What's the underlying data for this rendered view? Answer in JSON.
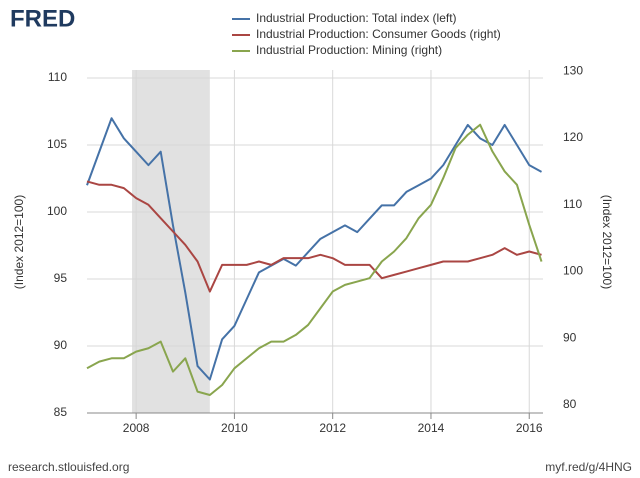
{
  "brand": "FRED",
  "footer_left": "research.stlouisfed.org",
  "footer_right": "myf.red/g/4HNG",
  "chart_data": {
    "type": "line",
    "y_label": "(Index 2012=100)",
    "y2_label": "(Index 2012=100)",
    "x": [
      2007.0,
      2007.25,
      2007.5,
      2007.75,
      2008.0,
      2008.25,
      2008.5,
      2008.75,
      2009.0,
      2009.25,
      2009.5,
      2009.75,
      2010.0,
      2010.25,
      2010.5,
      2010.75,
      2011.0,
      2011.25,
      2011.5,
      2011.75,
      2012.0,
      2012.25,
      2012.5,
      2012.75,
      2013.0,
      2013.25,
      2013.5,
      2013.75,
      2014.0,
      2014.25,
      2014.5,
      2014.75,
      2015.0,
      2015.25,
      2015.5,
      2015.75,
      2016.0,
      2016.25
    ],
    "xlim": [
      2007.0,
      2016.28
    ],
    "xticks": [
      2008,
      2010,
      2012,
      2014,
      2016
    ],
    "ylim": [
      85,
      110.6
    ],
    "yticks": [
      85,
      90,
      95,
      100,
      105,
      110
    ],
    "y2lim": [
      78.8,
      130.2
    ],
    "y2ticks": [
      80,
      90,
      100,
      110,
      120,
      130
    ],
    "grid": true,
    "shaded_regions": [
      [
        2007.917,
        2009.5
      ]
    ],
    "series": [
      {
        "name": "Industrial Production: Total index (left)",
        "color": "#4572a7",
        "axis": "y",
        "values": [
          102,
          104.5,
          107,
          105.5,
          104.5,
          103.5,
          104.5,
          99,
          94,
          88.5,
          87.5,
          90.5,
          91.5,
          93.5,
          95.5,
          96,
          96.5,
          96,
          97,
          98,
          98.5,
          99,
          98.5,
          99.5,
          100.5,
          100.5,
          101.5,
          102,
          102.5,
          103.5,
          105,
          106.5,
          105.5,
          105,
          106.5,
          105,
          103.5,
          103
        ]
      },
      {
        "name": "Industrial Production: Consumer Goods (right)",
        "color": "#aa4643",
        "axis": "y2",
        "values": [
          113.5,
          113,
          113,
          112.5,
          111,
          110,
          108,
          106,
          104,
          101.5,
          97,
          101,
          101,
          101,
          101.5,
          101,
          102,
          102,
          102,
          102.5,
          102,
          101,
          101,
          101,
          99,
          99.5,
          100,
          100.5,
          101,
          101.5,
          101.5,
          101.5,
          102,
          102.5,
          103.5,
          102.5,
          103,
          102.5
        ]
      },
      {
        "name": "Industrial Production: Mining (right)",
        "color": "#89a54e",
        "axis": "y2",
        "values": [
          85.5,
          86.5,
          87,
          87,
          88,
          88.5,
          89.5,
          85,
          87,
          82,
          81.5,
          83,
          85.5,
          87,
          88.5,
          89.5,
          89.5,
          90.5,
          92,
          94.5,
          97,
          98,
          98.5,
          99,
          101.5,
          103,
          105,
          108,
          110,
          114,
          118.5,
          120.5,
          122,
          118,
          115,
          113,
          107,
          101.5
        ]
      }
    ]
  }
}
